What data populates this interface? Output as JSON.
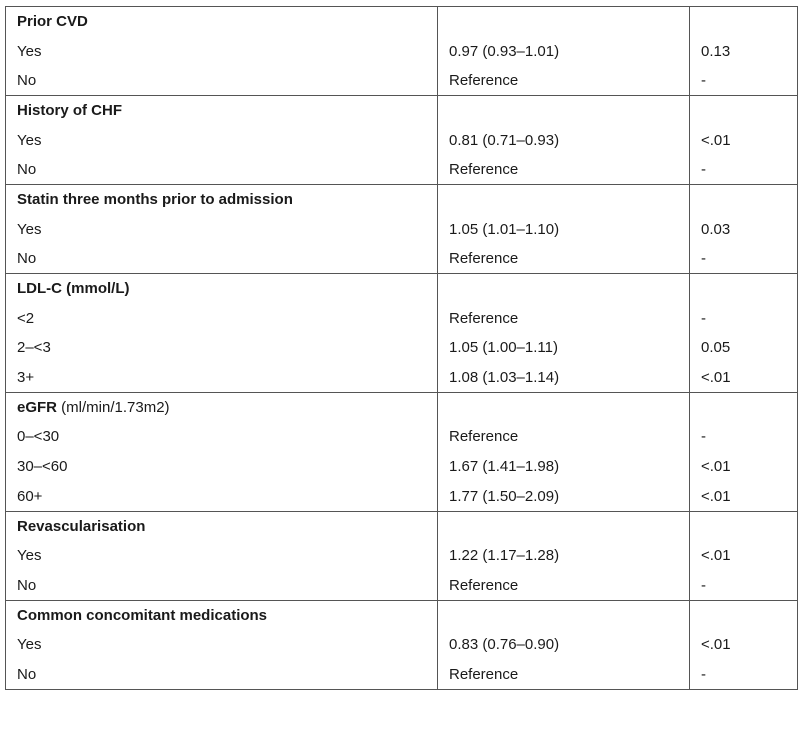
{
  "groups": [
    {
      "header": "Prior CVD",
      "header_unit": "",
      "rows": [
        {
          "label": "Yes",
          "or": "0.97 (0.93–1.01)",
          "p": "0.13"
        },
        {
          "label": "No",
          "or": "Reference",
          "p": "-"
        }
      ]
    },
    {
      "header": "History of CHF",
      "header_unit": "",
      "rows": [
        {
          "label": "Yes",
          "or": "0.81 (0.71–0.93)",
          "p": "<.01"
        },
        {
          "label": "No",
          "or": "Reference",
          "p": "-"
        }
      ]
    },
    {
      "header": "Statin three months prior to admission",
      "header_unit": "",
      "rows": [
        {
          "label": "Yes",
          "or": "1.05 (1.01–1.10)",
          "p": "0.03"
        },
        {
          "label": "No",
          "or": "Reference",
          "p": "-"
        }
      ]
    },
    {
      "header": "LDL-C (mmol/L)",
      "header_unit": "",
      "rows": [
        {
          "label": "<2",
          "or": "Reference",
          "p": "-"
        },
        {
          "label": "2–<3",
          "or": "1.05 (1.00–1.11)",
          "p": "0.05"
        },
        {
          "label": "3+",
          "or": "1.08 (1.03–1.14)",
          "p": "<.01"
        }
      ]
    },
    {
      "header": "eGFR",
      "header_unit": " (ml/min/1.73m2)",
      "rows": [
        {
          "label": "0–<30",
          "or": "Reference",
          "p": "-"
        },
        {
          "label": "30–<60",
          "or": "1.67 (1.41–1.98)",
          "p": "<.01"
        },
        {
          "label": "60+",
          "or": "1.77 (1.50–2.09)",
          "p": "<.01"
        }
      ]
    },
    {
      "header": "Revascularisation",
      "header_unit": "",
      "rows": [
        {
          "label": "Yes",
          "or": "1.22 (1.17–1.28)",
          "p": "<.01"
        },
        {
          "label": "No",
          "or": "Reference",
          "p": "-"
        }
      ]
    },
    {
      "header": "Common concomitant medications",
      "header_unit": "",
      "rows": [
        {
          "label": "Yes",
          "or": "0.83 (0.76–0.90)",
          "p": "<.01"
        },
        {
          "label": "No",
          "or": "Reference",
          "p": "-"
        }
      ]
    }
  ]
}
